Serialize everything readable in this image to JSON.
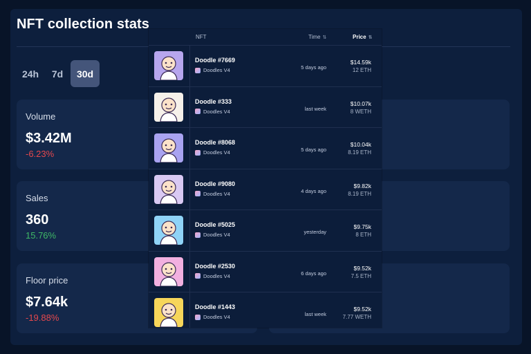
{
  "page_title": "NFT collection stats",
  "period_tabs": [
    {
      "label": "24h"
    },
    {
      "label": "7d"
    },
    {
      "label": "30d",
      "active": true
    }
  ],
  "stats": [
    {
      "label": "Volume",
      "value": "$3.42M",
      "change": "-6.23%",
      "trend": "negative"
    },
    {
      "label": "Sales",
      "value": "360",
      "change": "15.76%",
      "trend": "positive"
    },
    {
      "label": "Floor price",
      "value": "$7.64k",
      "change": "-19.88%",
      "trend": "negative"
    }
  ],
  "colors": {
    "background": "#081428",
    "panel": "#0d1f3d",
    "card": "#14284a",
    "active_tab": "#44557a",
    "negative": "#e5484d",
    "positive": "#3fb866"
  },
  "sales_table": {
    "columns": {
      "nft": "NFT",
      "time": "Time",
      "price": "Price"
    },
    "rows": [
      {
        "name": "Doodle #7669",
        "collection": "Doodles V4",
        "time": "5 days ago",
        "usd": "$14.59k",
        "eth": "12 ETH",
        "thumb_bg": "#b7a6ee"
      },
      {
        "name": "Doodle #333",
        "collection": "Doodles V4",
        "time": "last week",
        "usd": "$10.07k",
        "eth": "8 WETH",
        "thumb_bg": "#f6f1ea"
      },
      {
        "name": "Doodle #8068",
        "collection": "Doodles V4",
        "time": "5 days ago",
        "usd": "$10.04k",
        "eth": "8.19 ETH",
        "thumb_bg": "#a9a3f1"
      },
      {
        "name": "Doodle #9080",
        "collection": "Doodles V4",
        "time": "4 days ago",
        "usd": "$9.82k",
        "eth": "8.19 ETH",
        "thumb_bg": "#d9c9f3"
      },
      {
        "name": "Doodle #5025",
        "collection": "Doodles V4",
        "time": "yesterday",
        "usd": "$9.75k",
        "eth": "8 ETH",
        "thumb_bg": "#8fd3f7"
      },
      {
        "name": "Doodle #2530",
        "collection": "Doodles V4",
        "time": "6 days ago",
        "usd": "$9.52k",
        "eth": "7.5 ETH",
        "thumb_bg": "#f2b0e0"
      },
      {
        "name": "Doodle #1443",
        "collection": "Doodles V4",
        "time": "last week",
        "usd": "$9.52k",
        "eth": "7.77 WETH",
        "thumb_bg": "#f7d65a"
      }
    ]
  }
}
